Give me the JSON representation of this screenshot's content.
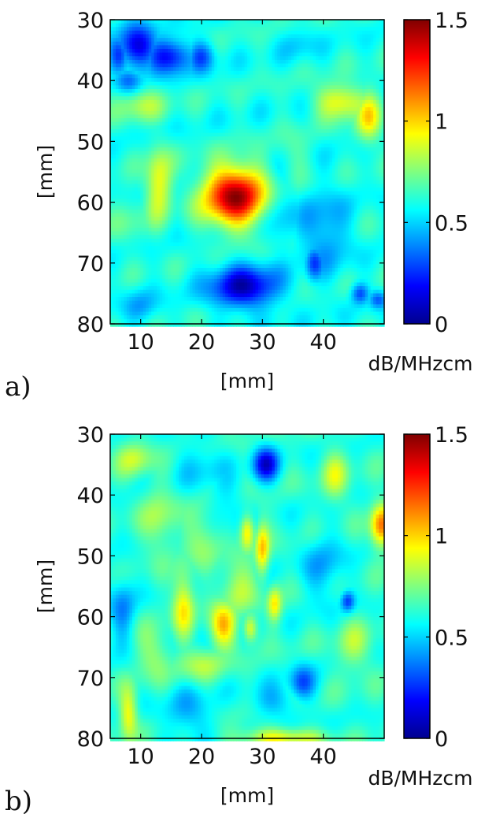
{
  "chart_data": [
    {
      "type": "heatmap",
      "panel_label": "a)",
      "xlabel": "[mm]",
      "ylabel": "[mm]",
      "xlim": [
        5,
        50
      ],
      "ylim": [
        80,
        30
      ],
      "y_axis": "reversed",
      "x_ticks": [
        10,
        20,
        30,
        40
      ],
      "x_tick_labels": [
        "10",
        "20",
        "30",
        "40"
      ],
      "y_ticks": [
        30,
        40,
        50,
        60,
        70,
        80
      ],
      "y_tick_labels": [
        "30",
        "40",
        "50",
        "60",
        "70",
        "80"
      ],
      "colorbar": {
        "label": "dB/MHzcm",
        "min": 0,
        "max": 1.5,
        "ticks": [
          0,
          0.5,
          1,
          1.5
        ],
        "tick_labels": [
          "0",
          "0.5",
          "1",
          "1.5"
        ],
        "colormap": "jet"
      },
      "background_value": 0.6,
      "features": [
        {
          "x": 25.5,
          "y": 59,
          "sx": 3.6,
          "sy": 3.4,
          "v": 1.45,
          "kind": "high"
        },
        {
          "x": 13,
          "y": 57,
          "sx": 1.5,
          "sy": 4,
          "v": 0.95,
          "kind": "high"
        },
        {
          "x": 10,
          "y": 44,
          "sx": 3,
          "sy": 2,
          "v": 0.8,
          "kind": "high"
        },
        {
          "x": 43,
          "y": 43.5,
          "sx": 3,
          "sy": 2,
          "v": 0.95,
          "kind": "high"
        },
        {
          "x": 47.5,
          "y": 46,
          "sx": 1.5,
          "sy": 3,
          "v": 0.95,
          "kind": "high"
        },
        {
          "x": 35,
          "y": 53,
          "sx": 2,
          "sy": 3,
          "v": 0.7,
          "kind": "high"
        },
        {
          "x": 8,
          "y": 63,
          "sx": 2,
          "sy": 3,
          "v": 0.7,
          "kind": "high"
        },
        {
          "x": 9.5,
          "y": 34.5,
          "sx": 2,
          "sy": 2.5,
          "v": 0.1,
          "kind": "low"
        },
        {
          "x": 14.5,
          "y": 36,
          "sx": 2.5,
          "sy": 2,
          "v": 0.15,
          "kind": "low"
        },
        {
          "x": 6.5,
          "y": 36,
          "sx": 1.2,
          "sy": 2,
          "v": 0.25,
          "kind": "low"
        },
        {
          "x": 20,
          "y": 36,
          "sx": 1.5,
          "sy": 1.8,
          "v": 0.3,
          "kind": "low"
        },
        {
          "x": 27,
          "y": 74,
          "sx": 4,
          "sy": 2.5,
          "v": 0.1,
          "kind": "low"
        },
        {
          "x": 40,
          "y": 65,
          "sx": 3,
          "sy": 5,
          "v": 0.4,
          "kind": "low"
        },
        {
          "x": 33,
          "y": 62,
          "sx": 2,
          "sy": 4,
          "v": 0.45,
          "kind": "low"
        },
        {
          "x": 38.5,
          "y": 70,
          "sx": 1,
          "sy": 2,
          "v": 0.3,
          "kind": "low"
        },
        {
          "x": 46,
          "y": 75,
          "sx": 1,
          "sy": 1.2,
          "v": 0.3,
          "kind": "low"
        },
        {
          "x": 49,
          "y": 76,
          "sx": 1,
          "sy": 1,
          "v": 0.35,
          "kind": "low"
        },
        {
          "x": 10,
          "y": 77,
          "sx": 2,
          "sy": 2,
          "v": 0.45,
          "kind": "low"
        },
        {
          "x": 36,
          "y": 34,
          "sx": 2,
          "sy": 2,
          "v": 0.5,
          "kind": "low"
        },
        {
          "x": 8,
          "y": 40,
          "sx": 1.5,
          "sy": 1.5,
          "v": 0.35,
          "kind": "low"
        }
      ]
    },
    {
      "type": "heatmap",
      "panel_label": "b)",
      "xlabel": "[mm]",
      "ylabel": "[mm]",
      "xlim": [
        5,
        50
      ],
      "ylim": [
        80,
        30
      ],
      "y_axis": "reversed",
      "x_ticks": [
        10,
        20,
        30,
        40
      ],
      "x_tick_labels": [
        "10",
        "20",
        "30",
        "40"
      ],
      "y_ticks": [
        30,
        40,
        50,
        60,
        70,
        80
      ],
      "y_tick_labels": [
        "30",
        "40",
        "50",
        "60",
        "70",
        "80"
      ],
      "colorbar": {
        "label": "dB/MHzcm",
        "min": 0,
        "max": 1.5,
        "ticks": [
          0,
          0.5,
          1,
          1.5
        ],
        "tick_labels": [
          "0",
          "0.5",
          "1",
          "1.5"
        ],
        "colormap": "jet"
      },
      "background_value": 0.62,
      "features": [
        {
          "x": 49.5,
          "y": 45,
          "sx": 1.2,
          "sy": 2.5,
          "v": 1.15,
          "kind": "high"
        },
        {
          "x": 23.5,
          "y": 61.5,
          "sx": 1.5,
          "sy": 2.5,
          "v": 1.05,
          "kind": "high"
        },
        {
          "x": 17,
          "y": 58,
          "sx": 1.2,
          "sy": 4,
          "v": 0.95,
          "kind": "high"
        },
        {
          "x": 27.5,
          "y": 46,
          "sx": 0.8,
          "sy": 2,
          "v": 1.0,
          "kind": "high"
        },
        {
          "x": 30,
          "y": 49,
          "sx": 0.8,
          "sy": 3,
          "v": 1.0,
          "kind": "high"
        },
        {
          "x": 32,
          "y": 58,
          "sx": 0.8,
          "sy": 2,
          "v": 0.95,
          "kind": "high"
        },
        {
          "x": 28,
          "y": 62,
          "sx": 0.8,
          "sy": 1.5,
          "v": 0.95,
          "kind": "high"
        },
        {
          "x": 8,
          "y": 76,
          "sx": 1,
          "sy": 3,
          "v": 0.95,
          "kind": "high"
        },
        {
          "x": 33,
          "y": 80,
          "sx": 5,
          "sy": 1.2,
          "v": 0.95,
          "kind": "high"
        },
        {
          "x": 13,
          "y": 44,
          "sx": 2,
          "sy": 4,
          "v": 0.8,
          "kind": "high"
        },
        {
          "x": 9,
          "y": 34,
          "sx": 2,
          "sy": 2,
          "v": 0.85,
          "kind": "high"
        },
        {
          "x": 42,
          "y": 37,
          "sx": 1.5,
          "sy": 3,
          "v": 0.85,
          "kind": "high"
        },
        {
          "x": 20,
          "y": 47,
          "sx": 2,
          "sy": 3,
          "v": 0.8,
          "kind": "high"
        },
        {
          "x": 26,
          "y": 55,
          "sx": 2,
          "sy": 3,
          "v": 0.85,
          "kind": "high"
        },
        {
          "x": 20,
          "y": 68,
          "sx": 3,
          "sy": 2,
          "v": 0.8,
          "kind": "high"
        },
        {
          "x": 12,
          "y": 66,
          "sx": 2,
          "sy": 3,
          "v": 0.8,
          "kind": "high"
        },
        {
          "x": 45,
          "y": 65,
          "sx": 2,
          "sy": 3,
          "v": 0.8,
          "kind": "high"
        },
        {
          "x": 30.5,
          "y": 35,
          "sx": 1.5,
          "sy": 2,
          "v": 0.15,
          "kind": "low"
        },
        {
          "x": 36.5,
          "y": 71,
          "sx": 1.5,
          "sy": 2,
          "v": 0.3,
          "kind": "low"
        },
        {
          "x": 44,
          "y": 57.5,
          "sx": 0.8,
          "sy": 1.2,
          "v": 0.3,
          "kind": "low"
        },
        {
          "x": 7,
          "y": 59,
          "sx": 1.5,
          "sy": 4,
          "v": 0.4,
          "kind": "low"
        },
        {
          "x": 32,
          "y": 74,
          "sx": 3,
          "sy": 2,
          "v": 0.45,
          "kind": "low"
        },
        {
          "x": 18,
          "y": 76,
          "sx": 3,
          "sy": 3,
          "v": 0.45,
          "kind": "low"
        },
        {
          "x": 40,
          "y": 52,
          "sx": 2.5,
          "sy": 4,
          "v": 0.45,
          "kind": "low"
        },
        {
          "x": 20,
          "y": 35,
          "sx": 3,
          "sy": 3,
          "v": 0.5,
          "kind": "low"
        },
        {
          "x": 24,
          "y": 41,
          "sx": 2,
          "sy": 3,
          "v": 0.5,
          "kind": "low"
        }
      ]
    }
  ]
}
